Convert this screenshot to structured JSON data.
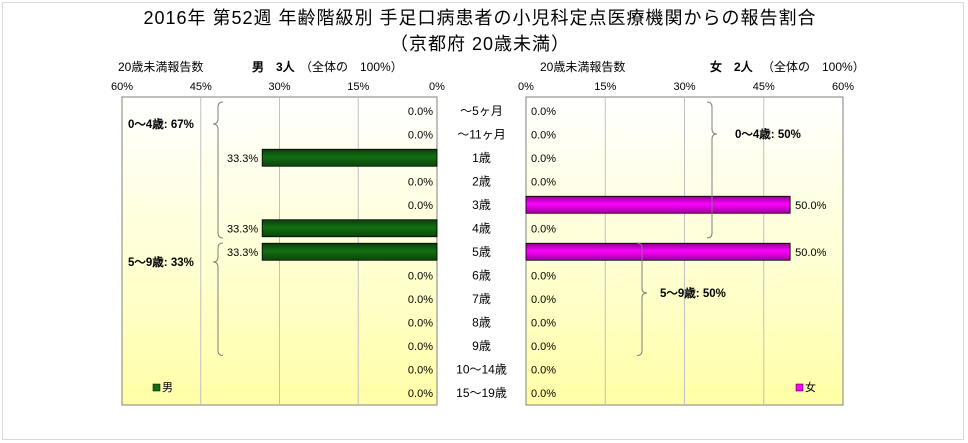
{
  "chart_data": {
    "type": "bar",
    "horizontal": true,
    "title": "2016年 第52週 年齢階級別 手足口病患者の小児科定点医療機関からの報告割合",
    "subtitle": "（京都府 20歳未満）",
    "categories": [
      "～5ヶ月",
      "～11ヶ月",
      "1歳",
      "2歳",
      "3歳",
      "4歳",
      "5歳",
      "6歳",
      "7歳",
      "8歳",
      "9歳",
      "10～14歳",
      "15～19歳"
    ],
    "xlim": [
      0,
      60
    ],
    "xticks": [
      0,
      15,
      30,
      45,
      60
    ],
    "xtick_labels": [
      "0%",
      "15%",
      "30%",
      "45%",
      "60%"
    ],
    "grid": true,
    "legend": "bottom",
    "series": [
      {
        "name": "男",
        "color": "#127012",
        "summary": {
          "label": "20歳未満報告数",
          "count": "男　3人",
          "share": "（全体の　100%）"
        },
        "values": [
          0.0,
          0.0,
          33.3,
          0.0,
          0.0,
          33.3,
          33.3,
          0.0,
          0.0,
          0.0,
          0.0,
          0.0,
          0.0
        ],
        "labels": [
          "0.0%",
          "0.0%",
          "33.3%",
          "0.0%",
          "0.0%",
          "33.3%",
          "33.3%",
          "0.0%",
          "0.0%",
          "0.0%",
          "0.0%",
          "0.0%",
          "0.0%"
        ],
        "annotations": [
          {
            "text": "0～4歳: 67%",
            "from_index": 0,
            "to_index": 5
          },
          {
            "text": "5～9歳: 33%",
            "from_index": 6,
            "to_index": 10
          }
        ]
      },
      {
        "name": "女",
        "color": "#ff00ff",
        "summary": {
          "label": "20歳未満報告数",
          "count": "女　2人",
          "share": "（全体の　100%）"
        },
        "values": [
          0.0,
          0.0,
          0.0,
          0.0,
          50.0,
          0.0,
          50.0,
          0.0,
          0.0,
          0.0,
          0.0,
          0.0,
          0.0
        ],
        "labels": [
          "0.0%",
          "0.0%",
          "0.0%",
          "0.0%",
          "50.0%",
          "0.0%",
          "50.0%",
          "0.0%",
          "0.0%",
          "0.0%",
          "0.0%",
          "0.0%",
          "0.0%"
        ],
        "annotations": [
          {
            "text": "0～4歳: 50%",
            "from_index": 0,
            "to_index": 5
          },
          {
            "text": "5～9歳: 50%",
            "from_index": 6,
            "to_index": 10
          }
        ]
      }
    ]
  }
}
